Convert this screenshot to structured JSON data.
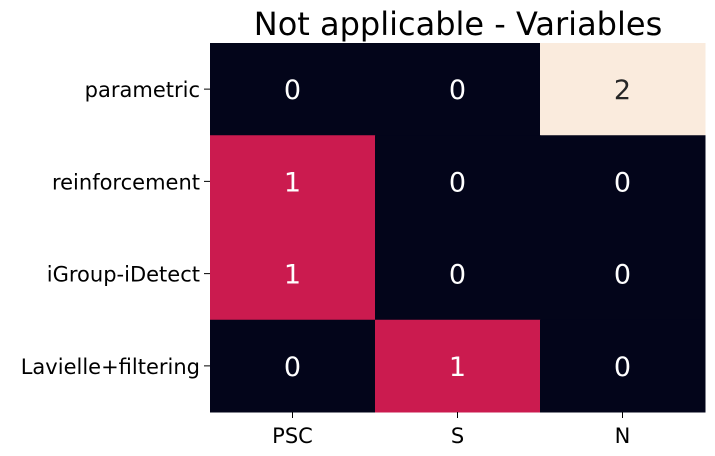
{
  "chart_data": {
    "type": "heatmap",
    "title": "Not applicable - Variables",
    "xlabel": "",
    "ylabel": "",
    "x_categories": [
      "PSC",
      "S",
      "N"
    ],
    "y_categories": [
      "parametric",
      "reinforcement",
      "iGroup-iDetect",
      "Lavielle+filtering"
    ],
    "values": [
      [
        0,
        0,
        2
      ],
      [
        1,
        0,
        0
      ],
      [
        1,
        0,
        0
      ],
      [
        0,
        1,
        0
      ]
    ],
    "colorbar": false,
    "colors": {
      "0": "#03051a",
      "1": "#cb1b4f",
      "2": "#faebdd"
    },
    "label_colors": {
      "light_text": "#ffffff",
      "dark_text": "#262626"
    }
  }
}
